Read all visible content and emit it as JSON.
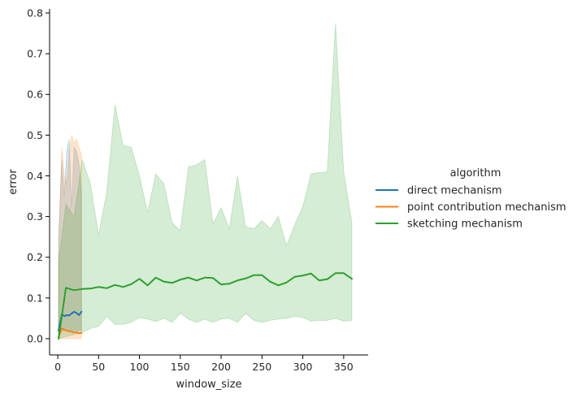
{
  "chart_data": {
    "type": "line",
    "xlabel": "window_size",
    "ylabel": "error",
    "xlim": [
      -10,
      380
    ],
    "ylim": [
      -0.04,
      0.81
    ],
    "xticks": [
      0,
      50,
      100,
      150,
      200,
      250,
      300,
      350
    ],
    "yticks": [
      0.0,
      0.1,
      0.2,
      0.3,
      0.4,
      0.5,
      0.6,
      0.7,
      0.8
    ],
    "grid": false,
    "legend": {
      "title": "algorithm",
      "placement": "right",
      "entries": [
        "direct mechanism",
        "point contribution mechanism",
        "sketching mechanism"
      ]
    },
    "series": [
      {
        "name": "direct mechanism",
        "color": "#1f77b4",
        "x": [
          1,
          5,
          8,
          11,
          14,
          17,
          20,
          23,
          26,
          29
        ],
        "y": [
          0.02,
          0.06,
          0.055,
          0.058,
          0.057,
          0.062,
          0.066,
          0.063,
          0.058,
          0.066
        ],
        "ci_low": [
          0.0,
          0.02,
          0.02,
          0.02,
          0.02,
          0.02,
          0.02,
          0.02,
          0.02,
          0.02
        ],
        "ci_high": [
          0.25,
          0.44,
          0.35,
          0.46,
          0.49,
          0.32,
          0.47,
          0.46,
          0.43,
          0.36
        ]
      },
      {
        "name": "point contribution mechanism",
        "color": "#ff7f0e",
        "x": [
          1,
          5,
          8,
          11,
          14,
          17,
          20,
          23,
          26,
          29
        ],
        "y": [
          0.005,
          0.025,
          0.022,
          0.02,
          0.018,
          0.017,
          0.015,
          0.016,
          0.013,
          0.014
        ],
        "ci_low": [
          0.0,
          0.0,
          0.0,
          0.0,
          0.0,
          0.0,
          0.0,
          0.0,
          0.0,
          0.0
        ],
        "ci_high": [
          0.2,
          0.47,
          0.4,
          0.38,
          0.45,
          0.5,
          0.48,
          0.49,
          0.47,
          0.45
        ]
      },
      {
        "name": "sketching mechanism",
        "color": "#2ca02c",
        "x": [
          1,
          10,
          20,
          30,
          40,
          50,
          60,
          70,
          80,
          90,
          100,
          110,
          120,
          130,
          140,
          150,
          160,
          170,
          180,
          190,
          200,
          210,
          220,
          230,
          240,
          250,
          260,
          270,
          280,
          290,
          300,
          310,
          320,
          330,
          340,
          350,
          360
        ],
        "y": [
          0.0,
          0.125,
          0.119,
          0.122,
          0.123,
          0.127,
          0.124,
          0.132,
          0.127,
          0.134,
          0.147,
          0.131,
          0.15,
          0.14,
          0.137,
          0.145,
          0.15,
          0.143,
          0.15,
          0.149,
          0.133,
          0.135,
          0.143,
          0.148,
          0.156,
          0.156,
          0.14,
          0.131,
          0.138,
          0.152,
          0.155,
          0.16,
          0.143,
          0.146,
          0.161,
          0.161,
          0.147
        ],
        "ci_low": [
          0.0,
          0.005,
          0.01,
          0.015,
          0.025,
          0.03,
          0.055,
          0.035,
          0.035,
          0.04,
          0.052,
          0.048,
          0.042,
          0.05,
          0.04,
          0.062,
          0.048,
          0.04,
          0.048,
          0.04,
          0.048,
          0.05,
          0.04,
          0.062,
          0.045,
          0.04,
          0.045,
          0.048,
          0.05,
          0.055,
          0.052,
          0.043,
          0.045,
          0.045,
          0.05,
          0.043,
          0.045
        ],
        "ci_high": [
          0.19,
          0.33,
          0.3,
          0.44,
          0.38,
          0.255,
          0.36,
          0.575,
          0.475,
          0.47,
          0.4,
          0.31,
          0.405,
          0.38,
          0.285,
          0.265,
          0.422,
          0.427,
          0.44,
          0.282,
          0.322,
          0.27,
          0.4,
          0.275,
          0.27,
          0.29,
          0.27,
          0.3,
          0.228,
          0.28,
          0.325,
          0.405,
          0.408,
          0.41,
          0.775,
          0.41,
          0.285
        ]
      }
    ]
  }
}
